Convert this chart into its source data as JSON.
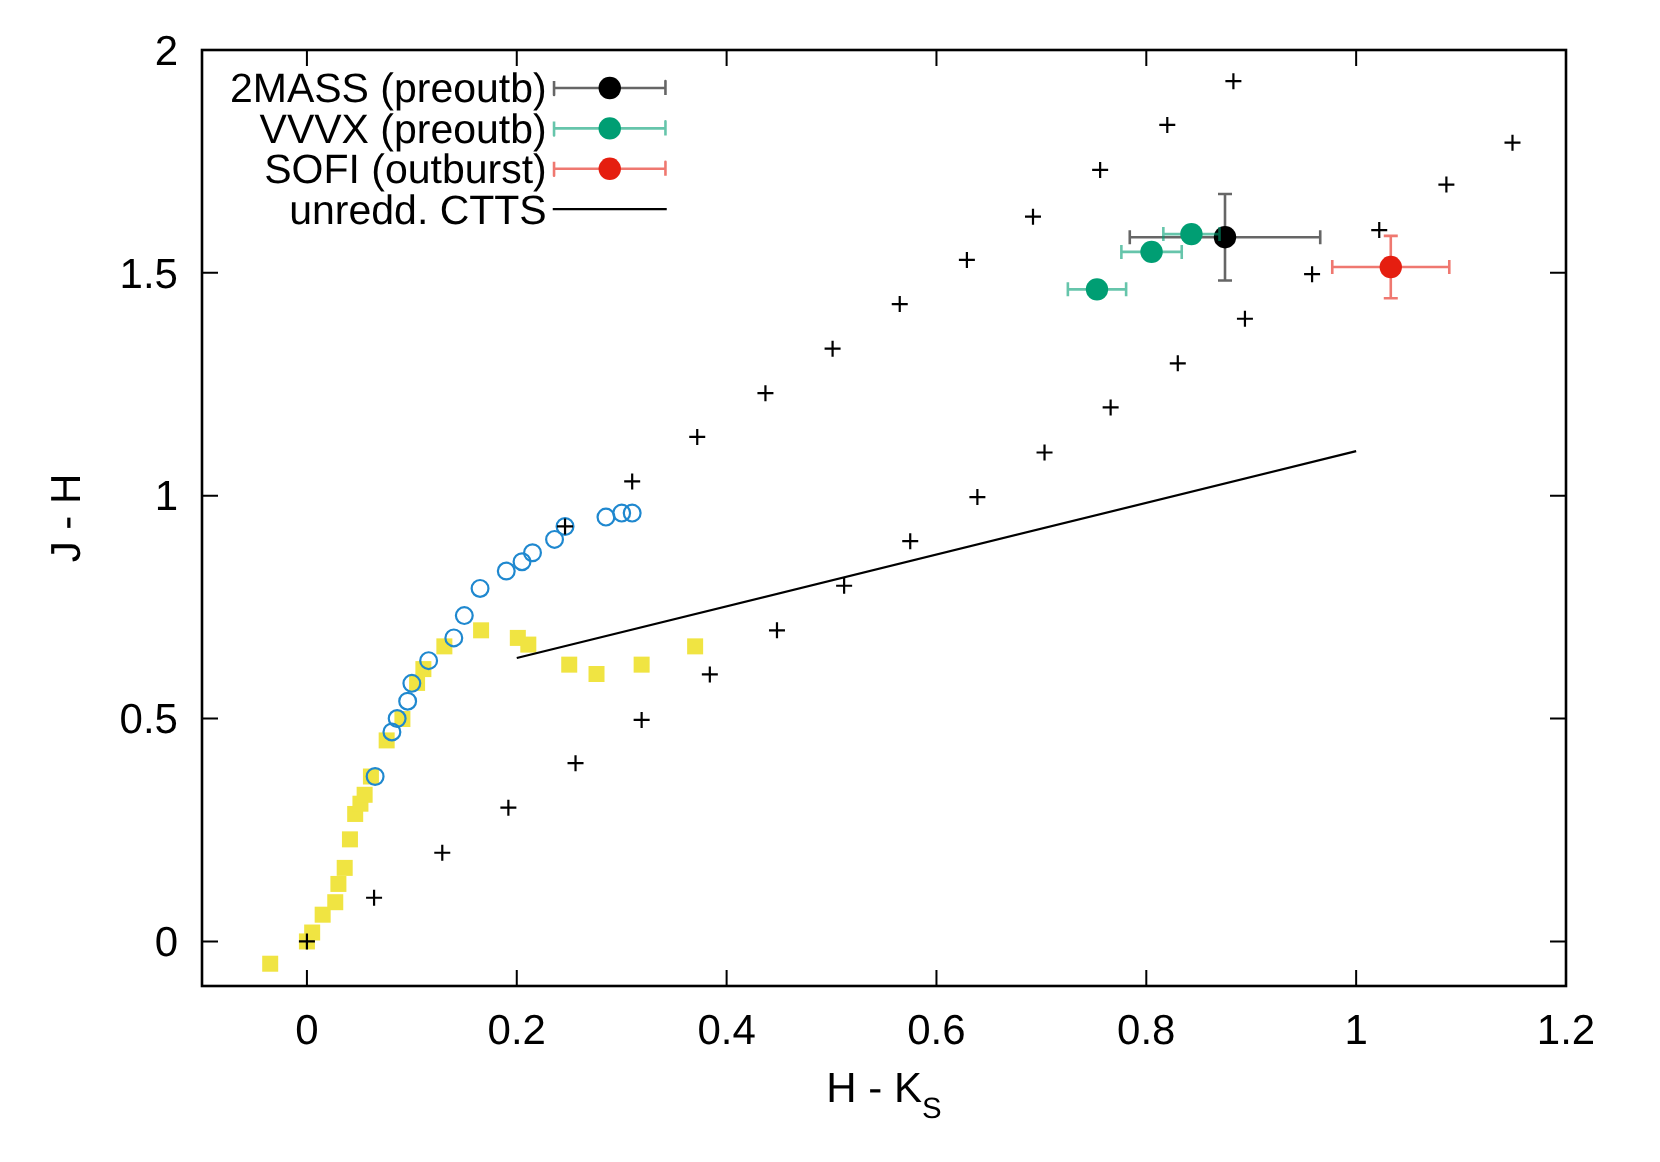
{
  "chart_data": {
    "type": "scatter",
    "xlabel": "H - K$_{S}$",
    "ylabel": "J - H",
    "xlim": [
      -0.1,
      1.2
    ],
    "ylim": [
      -0.1,
      2
    ],
    "xticks": [
      0,
      0.2,
      0.4,
      0.6,
      0.8,
      1,
      1.2
    ],
    "yticks": [
      0,
      0.5,
      1,
      1.5,
      2
    ],
    "legend": "top left",
    "series": [
      {
        "marker": "square",
        "color": "#f0e442",
        "x": [
          -0.035,
          0.0,
          0.005,
          0.015,
          0.027,
          0.03,
          0.036,
          0.041,
          0.046,
          0.051,
          0.055,
          0.061,
          0.076,
          0.091,
          0.105,
          0.111,
          0.131,
          0.166,
          0.201,
          0.211,
          0.25,
          0.276,
          0.319,
          0.37
        ],
        "values": [
          -0.05,
          0.0,
          0.02,
          0.06,
          0.088,
          0.129,
          0.165,
          0.229,
          0.286,
          0.309,
          0.329,
          0.37,
          0.451,
          0.499,
          0.58,
          0.611,
          0.662,
          0.698,
          0.681,
          0.666,
          0.621,
          0.6,
          0.621,
          0.662
        ]
      },
      {
        "marker": "circle",
        "color": "#1f88cf",
        "x": [
          0.065,
          0.081,
          0.086,
          0.096,
          0.1,
          0.116,
          0.14,
          0.15,
          0.165,
          0.19,
          0.205,
          0.215,
          0.236,
          0.246,
          0.285,
          0.3,
          0.31
        ],
        "values": [
          0.37,
          0.47,
          0.5,
          0.539,
          0.579,
          0.63,
          0.681,
          0.731,
          0.792,
          0.831,
          0.852,
          0.872,
          0.902,
          0.931,
          0.952,
          0.961,
          0.961
        ]
      },
      {
        "marker": "cross",
        "color": "#000000",
        "x": [
          0,
          0.064,
          0.129,
          0.192,
          0.256,
          0.319,
          0.384,
          0.448,
          0.512,
          0.575,
          0.639,
          0.703,
          0.766,
          0.83,
          0.894,
          0.958,
          1.022,
          1.086,
          1.149
        ],
        "values": [
          0,
          0.098,
          0.199,
          0.3,
          0.4,
          0.497,
          0.599,
          0.698,
          0.798,
          0.898,
          0.997,
          1.097,
          1.198,
          1.297,
          1.397,
          1.497,
          1.596,
          1.698,
          1.792
        ]
      },
      {
        "marker": "cross",
        "color": "#000000",
        "x": [
          0.246,
          0.31,
          0.372,
          0.437,
          0.501,
          0.565,
          0.629,
          0.692,
          0.756,
          0.82,
          0.883
        ],
        "values": [
          0.931,
          1.032,
          1.132,
          1.23,
          1.33,
          1.43,
          1.529,
          1.626,
          1.731,
          1.832,
          1.93
        ]
      },
      {
        "name": "2MASS (preoutb)",
        "marker": "circle",
        "color": "#000000",
        "x": [
          0.875
        ],
        "values": [
          1.58
        ],
        "errors": [
          0.1
        ],
        "xerrors": [
          0.092
        ]
      },
      {
        "name": "VVVX (preoutb)",
        "marker": "circle",
        "color": "#009e73",
        "x": [
          0.753,
          0.805,
          0.843
        ],
        "values": [
          1.463,
          1.547,
          1.587
        ],
        "xerrors": [
          0.029,
          0.03,
          0.028
        ]
      },
      {
        "name": "SOFI (outburst)",
        "marker": "circle",
        "color": "#e51e10",
        "x": [
          1.033
        ],
        "values": [
          1.513
        ],
        "errors": [
          0.073
        ],
        "xerrors": [
          0.057
        ]
      },
      {
        "name": "unredd. CTTS",
        "type": "line",
        "color": "#000000",
        "x": [
          0.2,
          1.0
        ],
        "values": [
          0.636,
          1.1
        ]
      }
    ]
  }
}
